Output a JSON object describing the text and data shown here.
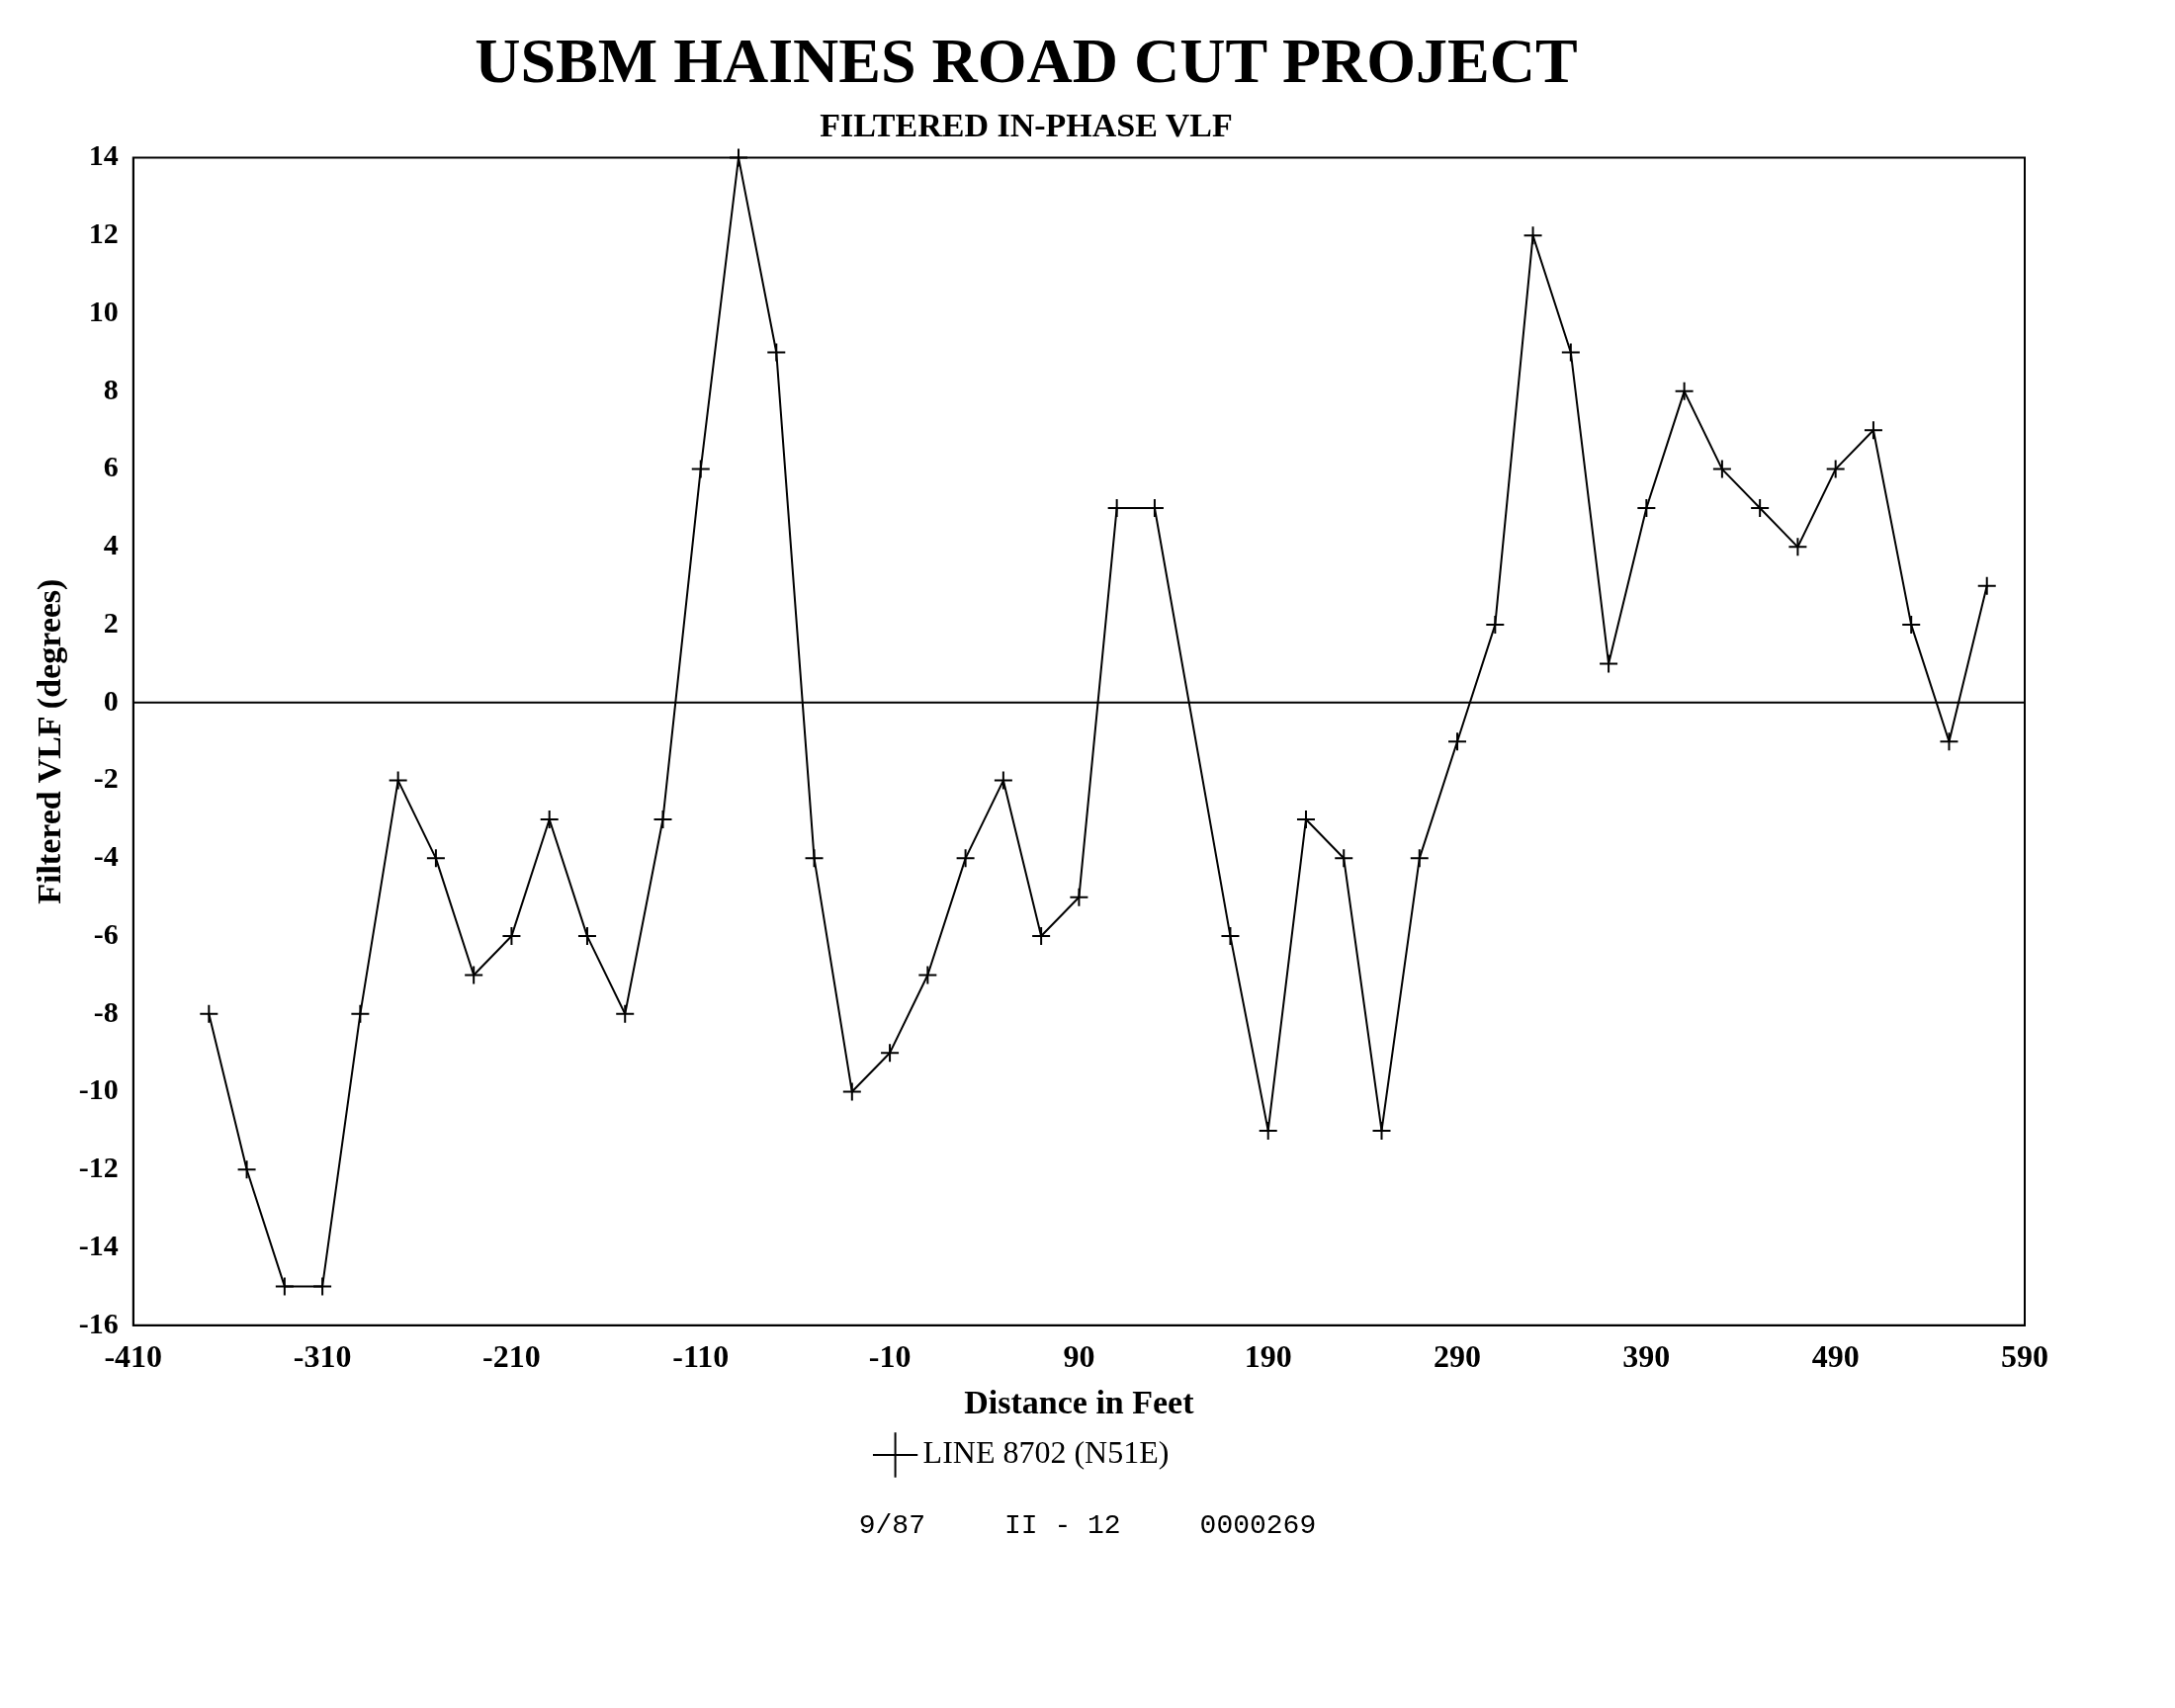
{
  "chart_data": {
    "type": "line",
    "title": "USBM HAINES ROAD CUT PROJECT",
    "subtitle": "FILTERED IN-PHASE VLF",
    "xlabel": "Distance in Feet",
    "ylabel": "Filtered VLF (degrees)",
    "series": [
      {
        "name": "LINE 8702 (N51E)",
        "color": "#000000",
        "x": [
          -370,
          -350,
          -330,
          -310,
          -290,
          -270,
          -250,
          -230,
          -210,
          -190,
          -170,
          -150,
          -130,
          -110,
          -90,
          -70,
          -50,
          -30,
          -10,
          10,
          30,
          50,
          70,
          90,
          110,
          130,
          170,
          190,
          210,
          230,
          250,
          270,
          290,
          310,
          330,
          350,
          370,
          390,
          410,
          430,
          450,
          470,
          490,
          510,
          530,
          550,
          570
        ],
        "values": [
          -8,
          -12,
          -15,
          -15,
          -8,
          -2,
          -4,
          -7,
          -6,
          -3,
          -6,
          -8,
          -3,
          6,
          14,
          9,
          -4,
          -10,
          -9,
          -7,
          -4,
          -2,
          -6,
          -5,
          5,
          5,
          -6,
          -11,
          -3,
          -4,
          -11,
          -4,
          -1,
          2,
          12,
          9,
          1,
          5,
          8,
          6,
          5,
          4,
          6,
          7,
          2,
          -1,
          3
        ]
      }
    ],
    "xlim": [
      -410,
      590
    ],
    "xticks": [
      -410,
      -310,
      -210,
      -110,
      -10,
      90,
      190,
      290,
      390,
      490,
      590
    ],
    "ylim": [
      -16,
      14
    ],
    "yticks": [
      -16,
      -14,
      -12,
      -10,
      -8,
      -6,
      -4,
      -2,
      0,
      2,
      4,
      6,
      8,
      10,
      12,
      14
    ],
    "ref_lines": [
      {
        "axis": "y",
        "value": 0,
        "color": "#000000"
      }
    ],
    "grid": false,
    "legend": "bottom",
    "marker": "cross",
    "line_style": "solid",
    "annotations": [
      "9/87",
      "II - 12",
      "0000269"
    ]
  }
}
